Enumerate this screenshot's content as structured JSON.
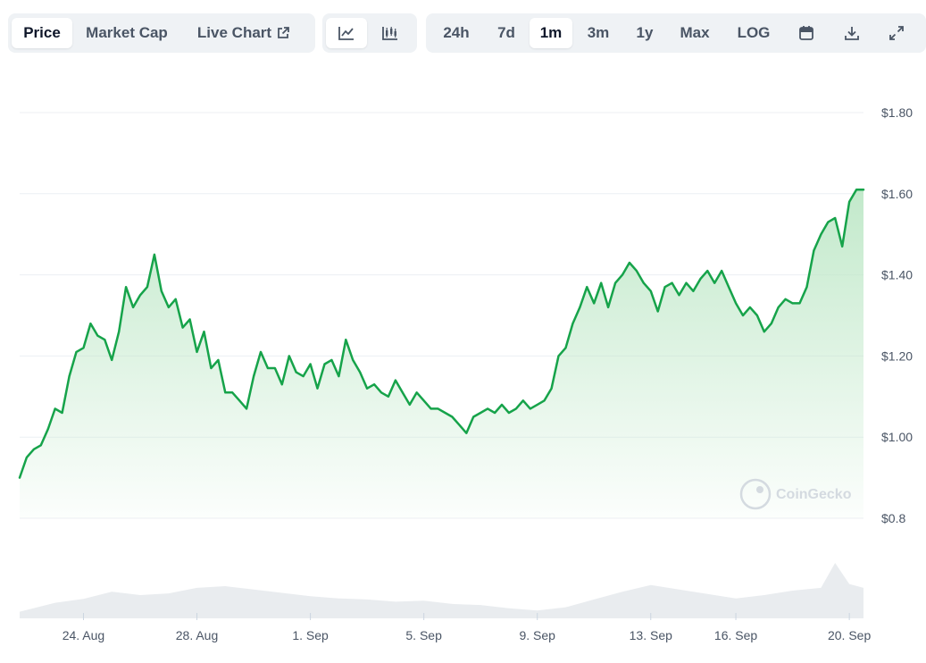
{
  "toolbar": {
    "data_tabs": [
      {
        "label": "Price",
        "active": true
      },
      {
        "label": "Market Cap",
        "active": false
      },
      {
        "label": "Live Chart",
        "active": false,
        "icon": "external-link-icon"
      }
    ],
    "chart_types": [
      {
        "icon": "line-chart-icon",
        "active": true
      },
      {
        "icon": "candlestick-icon",
        "active": false
      }
    ],
    "ranges": [
      {
        "label": "24h",
        "active": false
      },
      {
        "label": "7d",
        "active": false
      },
      {
        "label": "1m",
        "active": true
      },
      {
        "label": "3m",
        "active": false
      },
      {
        "label": "1y",
        "active": false
      },
      {
        "label": "Max",
        "active": false
      },
      {
        "label": "LOG",
        "active": false
      }
    ],
    "actions": [
      {
        "icon": "calendar-icon"
      },
      {
        "icon": "download-icon"
      },
      {
        "icon": "fullscreen-icon"
      }
    ]
  },
  "watermark": "CoinGecko",
  "colors": {
    "line": "#16a34a",
    "fill_top": "#bfe8c8",
    "volume": "#e9ecef",
    "grid": "#eceff3",
    "tick_text": "#4a5565"
  },
  "chart_data": {
    "type": "area",
    "x_tick_labels": [
      "24. Aug",
      "28. Aug",
      "1. Sep",
      "5. Sep",
      "9. Sep",
      "13. Sep",
      "16. Sep",
      "20. Sep"
    ],
    "x_tick_dates": [
      "2024-08-24",
      "2024-08-28",
      "2024-09-01",
      "2024-09-05",
      "2024-09-09",
      "2024-09-13",
      "2024-09-16",
      "2024-09-20"
    ],
    "y_tick_labels": [
      "$0.8",
      "$1.00",
      "$1.20",
      "$1.40",
      "$1.60",
      "$1.80"
    ],
    "y_ticks": [
      0.8,
      1.0,
      1.2,
      1.4,
      1.6,
      1.8
    ],
    "ylim": [
      0.8,
      1.8
    ],
    "grid": true,
    "series": [
      {
        "x": [
          "2024-08-21T18:00",
          "2024-08-22T00:00",
          "2024-08-22T06:00",
          "2024-08-22T12:00",
          "2024-08-22T18:00",
          "2024-08-23T00:00",
          "2024-08-23T06:00",
          "2024-08-23T12:00",
          "2024-08-23T18:00",
          "2024-08-24T00:00",
          "2024-08-24T06:00",
          "2024-08-24T12:00",
          "2024-08-24T18:00",
          "2024-08-25T00:00",
          "2024-08-25T06:00",
          "2024-08-25T12:00",
          "2024-08-25T18:00",
          "2024-08-26T00:00",
          "2024-08-26T06:00",
          "2024-08-26T12:00",
          "2024-08-26T18:00",
          "2024-08-27T00:00",
          "2024-08-27T06:00",
          "2024-08-27T12:00",
          "2024-08-27T18:00",
          "2024-08-28T00:00",
          "2024-08-28T06:00",
          "2024-08-28T12:00",
          "2024-08-28T18:00",
          "2024-08-29T00:00",
          "2024-08-29T06:00",
          "2024-08-29T12:00",
          "2024-08-29T18:00",
          "2024-08-30T00:00",
          "2024-08-30T06:00",
          "2024-08-30T12:00",
          "2024-08-30T18:00",
          "2024-08-31T00:00",
          "2024-08-31T06:00",
          "2024-08-31T12:00",
          "2024-08-31T18:00",
          "2024-09-01T00:00",
          "2024-09-01T06:00",
          "2024-09-01T12:00",
          "2024-09-01T18:00",
          "2024-09-02T00:00",
          "2024-09-02T06:00",
          "2024-09-02T12:00",
          "2024-09-02T18:00",
          "2024-09-03T00:00",
          "2024-09-03T06:00",
          "2024-09-03T12:00",
          "2024-09-03T18:00",
          "2024-09-04T00:00",
          "2024-09-04T06:00",
          "2024-09-04T12:00",
          "2024-09-04T18:00",
          "2024-09-05T00:00",
          "2024-09-05T06:00",
          "2024-09-05T12:00",
          "2024-09-05T18:00",
          "2024-09-06T00:00",
          "2024-09-06T06:00",
          "2024-09-06T12:00",
          "2024-09-06T18:00",
          "2024-09-07T00:00",
          "2024-09-07T06:00",
          "2024-09-07T12:00",
          "2024-09-07T18:00",
          "2024-09-08T00:00",
          "2024-09-08T06:00",
          "2024-09-08T12:00",
          "2024-09-08T18:00",
          "2024-09-09T00:00",
          "2024-09-09T06:00",
          "2024-09-09T12:00",
          "2024-09-09T18:00",
          "2024-09-10T00:00",
          "2024-09-10T06:00",
          "2024-09-10T12:00",
          "2024-09-10T18:00",
          "2024-09-11T00:00",
          "2024-09-11T06:00",
          "2024-09-11T12:00",
          "2024-09-11T18:00",
          "2024-09-12T00:00",
          "2024-09-12T06:00",
          "2024-09-12T12:00",
          "2024-09-12T18:00",
          "2024-09-13T00:00",
          "2024-09-13T06:00",
          "2024-09-13T12:00",
          "2024-09-13T18:00",
          "2024-09-14T00:00",
          "2024-09-14T06:00",
          "2024-09-14T12:00",
          "2024-09-14T18:00",
          "2024-09-15T00:00",
          "2024-09-15T06:00",
          "2024-09-15T12:00",
          "2024-09-15T18:00",
          "2024-09-16T00:00",
          "2024-09-16T06:00",
          "2024-09-16T12:00",
          "2024-09-16T18:00",
          "2024-09-17T00:00",
          "2024-09-17T06:00",
          "2024-09-17T12:00",
          "2024-09-17T18:00",
          "2024-09-18T00:00",
          "2024-09-18T06:00",
          "2024-09-18T12:00",
          "2024-09-18T18:00",
          "2024-09-19T00:00",
          "2024-09-19T06:00",
          "2024-09-19T12:00",
          "2024-09-19T18:00",
          "2024-09-20T00:00",
          "2024-09-20T06:00",
          "2024-09-20T12:00"
        ],
        "values": [
          0.9,
          0.95,
          0.97,
          0.98,
          1.02,
          1.07,
          1.06,
          1.15,
          1.21,
          1.22,
          1.28,
          1.25,
          1.24,
          1.19,
          1.26,
          1.37,
          1.32,
          1.35,
          1.37,
          1.45,
          1.36,
          1.32,
          1.34,
          1.27,
          1.29,
          1.21,
          1.26,
          1.17,
          1.19,
          1.11,
          1.11,
          1.09,
          1.07,
          1.15,
          1.21,
          1.17,
          1.17,
          1.13,
          1.2,
          1.16,
          1.15,
          1.18,
          1.12,
          1.18,
          1.19,
          1.15,
          1.24,
          1.19,
          1.16,
          1.12,
          1.13,
          1.11,
          1.1,
          1.14,
          1.11,
          1.08,
          1.11,
          1.09,
          1.07,
          1.07,
          1.06,
          1.05,
          1.03,
          1.01,
          1.05,
          1.06,
          1.07,
          1.06,
          1.08,
          1.06,
          1.07,
          1.09,
          1.07,
          1.08,
          1.09,
          1.12,
          1.2,
          1.22,
          1.28,
          1.32,
          1.37,
          1.33,
          1.38,
          1.32,
          1.38,
          1.4,
          1.43,
          1.41,
          1.38,
          1.36,
          1.31,
          1.37,
          1.38,
          1.35,
          1.38,
          1.36,
          1.39,
          1.41,
          1.38,
          1.41,
          1.37,
          1.33,
          1.3,
          1.32,
          1.3,
          1.26,
          1.28,
          1.32,
          1.34,
          1.33,
          1.33,
          1.37,
          1.46,
          1.5,
          1.53,
          1.54,
          1.47,
          1.58,
          1.61,
          1.61
        ]
      }
    ],
    "volume": {
      "x": [
        "2024-08-21T18:00",
        "2024-08-23T00:00",
        "2024-08-24T00:00",
        "2024-08-25T00:00",
        "2024-08-26T00:00",
        "2024-08-27T00:00",
        "2024-08-28T00:00",
        "2024-08-29T00:00",
        "2024-08-30T00:00",
        "2024-08-31T00:00",
        "2024-09-01T00:00",
        "2024-09-02T00:00",
        "2024-09-03T00:00",
        "2024-09-04T00:00",
        "2024-09-05T00:00",
        "2024-09-06T00:00",
        "2024-09-07T00:00",
        "2024-09-08T00:00",
        "2024-09-09T00:00",
        "2024-09-10T00:00",
        "2024-09-11T00:00",
        "2024-09-12T00:00",
        "2024-09-13T00:00",
        "2024-09-14T00:00",
        "2024-09-15T00:00",
        "2024-09-16T00:00",
        "2024-09-17T00:00",
        "2024-09-18T00:00",
        "2024-09-19T00:00",
        "2024-09-19T12:00",
        "2024-09-20T00:00",
        "2024-09-20T12:00"
      ],
      "values": [
        0.12,
        0.28,
        0.35,
        0.48,
        0.42,
        0.45,
        0.55,
        0.58,
        0.52,
        0.46,
        0.4,
        0.36,
        0.34,
        0.3,
        0.32,
        0.26,
        0.24,
        0.18,
        0.14,
        0.2,
        0.34,
        0.48,
        0.6,
        0.52,
        0.44,
        0.36,
        0.42,
        0.5,
        0.55,
        1.0,
        0.62,
        0.55
      ]
    }
  }
}
